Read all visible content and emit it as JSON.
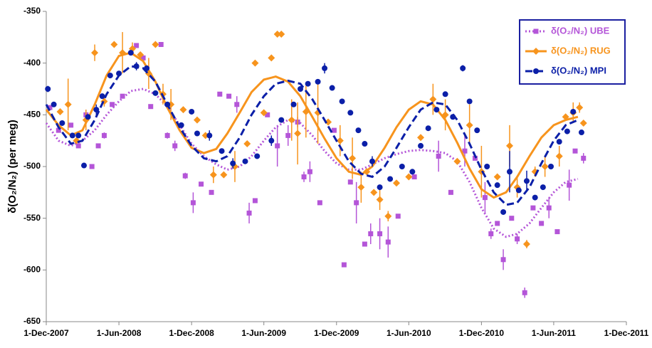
{
  "chart_data": {
    "type": "scatter",
    "y_label": "δ(O₂/N₂) (per meg)",
    "xlim": [
      "2007-12-01",
      "2011-12-01"
    ],
    "xticks": [
      {
        "value": "2007-12-01",
        "label": "1-Dec-2007"
      },
      {
        "value": "2008-06-01",
        "label": "1-Jun-2008"
      },
      {
        "value": "2008-12-01",
        "label": "1-Dec-2008"
      },
      {
        "value": "2009-06-01",
        "label": "1-Jun-2009"
      },
      {
        "value": "2009-12-01",
        "label": "1-Dec-2009"
      },
      {
        "value": "2010-06-01",
        "label": "1-Jun-2010"
      },
      {
        "value": "2010-12-01",
        "label": "1-Dec-2010"
      },
      {
        "value": "2011-06-01",
        "label": "1-Jun-2011"
      },
      {
        "value": "2011-12-01",
        "label": "1-Dec-2011"
      }
    ],
    "ylim": [
      -650,
      -350
    ],
    "yticks": [
      -650,
      -600,
      -550,
      -500,
      -450,
      -400,
      -350
    ],
    "legend": "upper right",
    "fit_x": [
      "2007-12-01",
      "2008-01-01",
      "2008-02-01",
      "2008-03-01",
      "2008-04-01",
      "2008-05-01",
      "2008-06-01",
      "2008-07-01",
      "2008-08-01",
      "2008-09-01",
      "2008-10-01",
      "2008-11-01",
      "2008-12-01",
      "2009-01-01",
      "2009-02-01",
      "2009-03-01",
      "2009-04-01",
      "2009-05-01",
      "2009-06-01",
      "2009-07-01",
      "2009-08-01",
      "2009-09-01",
      "2009-10-01",
      "2009-11-01",
      "2009-12-01",
      "2010-01-01",
      "2010-02-01",
      "2010-03-01",
      "2010-04-01",
      "2010-05-01",
      "2010-06-01",
      "2010-07-01",
      "2010-08-01",
      "2010-09-01",
      "2010-10-01",
      "2010-11-01",
      "2010-12-01",
      "2011-01-01",
      "2011-02-01",
      "2011-03-01",
      "2011-04-01",
      "2011-05-01",
      "2011-06-01",
      "2011-07-01",
      "2011-08-01"
    ],
    "series": [
      {
        "name": "δ(O₂/N₂) UBE",
        "color": "#b455d8",
        "marker": "square",
        "line_style": "dotted",
        "x": [
          "2007-12-10",
          "2008-01-01",
          "2008-02-01",
          "2008-02-20",
          "2008-03-10",
          "2008-03-25",
          "2008-04-10",
          "2008-04-25",
          "2008-05-15",
          "2008-06-10",
          "2008-07-15",
          "2008-08-01",
          "2008-08-20",
          "2008-09-15",
          "2008-10-01",
          "2008-10-20",
          "2008-11-15",
          "2008-12-05",
          "2008-12-25",
          "2009-01-20",
          "2009-02-10",
          "2009-03-05",
          "2009-03-25",
          "2009-04-25",
          "2009-05-10",
          "2009-06-10",
          "2009-07-05",
          "2009-08-01",
          "2009-08-25",
          "2009-09-10",
          "2009-09-25",
          "2009-10-20",
          "2009-11-25",
          "2009-12-20",
          "2010-01-05",
          "2010-01-20",
          "2010-02-10",
          "2010-02-25",
          "2010-03-20",
          "2010-04-10",
          "2010-05-05",
          "2010-06-15",
          "2010-08-15",
          "2010-09-15",
          "2010-10-20",
          "2010-11-15",
          "2010-12-10",
          "2010-12-25",
          "2011-01-10",
          "2011-01-25",
          "2011-02-15",
          "2011-03-01",
          "2011-03-20",
          "2011-04-10",
          "2011-05-01",
          "2011-05-20",
          "2011-06-10",
          "2011-07-10",
          "2011-07-25",
          "2011-08-15"
        ],
        "values": [
          -443,
          -465,
          -460,
          -480,
          -450,
          -500,
          -480,
          -470,
          -440,
          -432,
          -383,
          -395,
          -442,
          -382,
          -470,
          -480,
          -509,
          -535,
          -517,
          -525,
          -430,
          -432,
          -440,
          -545,
          -533,
          -450,
          -480,
          -470,
          -457,
          -510,
          -505,
          -535,
          -465,
          -595,
          -515,
          -535,
          -575,
          -565,
          -565,
          -573,
          -548,
          -510,
          -490,
          -525,
          -485,
          -492,
          -530,
          -565,
          -555,
          -590,
          -550,
          -570,
          -622,
          -540,
          -555,
          -540,
          -563,
          -518,
          -485,
          -492
        ],
        "errors": [
          null,
          null,
          null,
          null,
          5,
          null,
          null,
          3,
          null,
          null,
          null,
          null,
          null,
          null,
          3,
          5,
          3,
          10,
          null,
          null,
          null,
          null,
          8,
          10,
          null,
          null,
          20,
          10,
          5,
          5,
          10,
          null,
          null,
          null,
          null,
          20,
          null,
          10,
          15,
          15,
          null,
          null,
          15,
          null,
          15,
          null,
          15,
          5,
          null,
          10,
          null,
          5,
          5,
          null,
          null,
          10,
          null,
          15,
          null,
          5
        ],
        "fit_values": [
          -458,
          -475,
          -480,
          -475,
          -465,
          -450,
          -437,
          -427,
          -425,
          -430,
          -442,
          -460,
          -478,
          -490,
          -498,
          -503,
          -500,
          -490,
          -475,
          -462,
          -455,
          -458,
          -470,
          -485,
          -497,
          -503,
          -503,
          -498,
          -492,
          -488,
          -485,
          -484,
          -485,
          -487,
          -495,
          -515,
          -540,
          -560,
          -568,
          -565,
          -555,
          -540,
          -525,
          -515,
          -512
        ]
      },
      {
        "name": "δ(O₂/N₂) RUG",
        "color": "#f7941d",
        "marker": "diamond",
        "line_style": "solid",
        "x": [
          "2008-01-05",
          "2008-01-25",
          "2008-02-15",
          "2008-03-10",
          "2008-04-01",
          "2008-04-25",
          "2008-05-20",
          "2008-06-10",
          "2008-07-05",
          "2008-07-25",
          "2008-08-15",
          "2008-09-01",
          "2008-09-20",
          "2008-10-10",
          "2008-11-10",
          "2008-12-15",
          "2009-01-05",
          "2009-01-25",
          "2009-02-20",
          "2009-03-20",
          "2009-04-20",
          "2009-05-10",
          "2009-06-01",
          "2009-06-20",
          "2009-07-05",
          "2009-07-15",
          "2009-08-10",
          "2009-08-25",
          "2009-09-15",
          "2009-10-15",
          "2009-11-10",
          "2009-12-10",
          "2010-01-10",
          "2010-02-01",
          "2010-02-15",
          "2010-03-05",
          "2010-03-20",
          "2010-04-10",
          "2010-05-01",
          "2010-06-01",
          "2010-07-01",
          "2010-08-01",
          "2010-09-01",
          "2010-10-01",
          "2010-11-01",
          "2010-12-01",
          "2011-01-10",
          "2011-02-10",
          "2011-03-01",
          "2011-03-25",
          "2011-04-15",
          "2011-05-10",
          "2011-06-15",
          "2011-07-01",
          "2011-07-20",
          "2011-08-05",
          "2011-08-15"
        ],
        "values": [
          -447,
          -440,
          -475,
          -455,
          -390,
          -437,
          -382,
          -390,
          -386,
          -392,
          -410,
          -382,
          -430,
          -440,
          -445,
          -455,
          -470,
          -508,
          -508,
          -500,
          -478,
          -400,
          -448,
          -395,
          -372,
          -372,
          -455,
          -468,
          -447,
          -448,
          -457,
          -475,
          -492,
          -520,
          -505,
          -525,
          -532,
          -548,
          -516,
          -510,
          -472,
          -435,
          -450,
          -495,
          -460,
          -505,
          -510,
          -480,
          -520,
          -575,
          -505,
          -500,
          -490,
          -452,
          -448,
          -443,
          -458
        ],
        "errors": [
          3,
          25,
          null,
          10,
          8,
          5,
          null,
          20,
          6,
          null,
          15,
          null,
          10,
          15,
          null,
          null,
          null,
          8,
          null,
          15,
          null,
          null,
          null,
          null,
          null,
          null,
          20,
          30,
          25,
          30,
          null,
          15,
          20,
          15,
          null,
          null,
          10,
          5,
          null,
          null,
          null,
          15,
          15,
          null,
          20,
          25,
          null,
          20,
          10,
          4,
          5,
          10,
          10,
          null,
          10,
          5,
          null
        ],
        "fit_values": [
          -445,
          -460,
          -470,
          -465,
          -440,
          -412,
          -393,
          -390,
          -398,
          -418,
          -443,
          -465,
          -482,
          -487,
          -483,
          -468,
          -448,
          -428,
          -416,
          -413,
          -418,
          -432,
          -452,
          -473,
          -492,
          -505,
          -508,
          -500,
          -482,
          -462,
          -445,
          -437,
          -440,
          -455,
          -477,
          -502,
          -522,
          -530,
          -525,
          -510,
          -490,
          -472,
          -460,
          -455,
          -452
        ]
      },
      {
        "name": "δ(O₂/N₂) MPI",
        "color": "#0b1fa8",
        "marker": "circle",
        "line_style": "dashed",
        "x": [
          "2007-12-05",
          "2007-12-20",
          "2008-01-10",
          "2008-02-05",
          "2008-02-20",
          "2008-03-05",
          "2008-03-15",
          "2008-04-05",
          "2008-04-20",
          "2008-05-10",
          "2008-06-01",
          "2008-07-01",
          "2008-07-15",
          "2008-08-10",
          "2008-09-01",
          "2008-10-01",
          "2008-11-05",
          "2008-12-01",
          "2008-12-15",
          "2009-01-15",
          "2009-02-15",
          "2009-03-15",
          "2009-04-15",
          "2009-05-15",
          "2009-06-20",
          "2009-07-15",
          "2009-08-15",
          "2009-09-01",
          "2009-09-20",
          "2009-10-15",
          "2009-11-01",
          "2009-11-20",
          "2009-12-15",
          "2010-01-05",
          "2010-01-25",
          "2010-02-10",
          "2010-03-01",
          "2010-03-20",
          "2010-04-15",
          "2010-05-15",
          "2010-06-10",
          "2010-07-01",
          "2010-07-20",
          "2010-08-10",
          "2010-09-01",
          "2010-09-20",
          "2010-10-15",
          "2010-11-01",
          "2010-11-20",
          "2010-12-15",
          "2011-01-10",
          "2011-01-25",
          "2011-02-10",
          "2011-03-05",
          "2011-03-25",
          "2011-04-15",
          "2011-05-05",
          "2011-05-25",
          "2011-06-15",
          "2011-07-05",
          "2011-07-20",
          "2011-08-10"
        ],
        "values": [
          -425,
          -440,
          -458,
          -470,
          -470,
          -499,
          -452,
          -445,
          -432,
          -412,
          -410,
          -390,
          -403,
          -405,
          -429,
          -440,
          -460,
          -447,
          -468,
          -470,
          -485,
          -497,
          -495,
          -490,
          -475,
          -455,
          -440,
          -425,
          -420,
          -418,
          -405,
          -424,
          -437,
          -448,
          -465,
          -478,
          -495,
          -520,
          -512,
          -500,
          -505,
          -480,
          -463,
          -445,
          -430,
          -452,
          -405,
          -437,
          -465,
          -500,
          -518,
          -544,
          -505,
          -523,
          -514,
          -530,
          -520,
          -500,
          -476,
          -466,
          -447,
          -467
        ],
        "errors": [
          3,
          null,
          null,
          null,
          null,
          null,
          null,
          5,
          null,
          null,
          null,
          null,
          4,
          null,
          null,
          null,
          null,
          null,
          null,
          5,
          null,
          5,
          null,
          null,
          5,
          null,
          null,
          null,
          null,
          null,
          5,
          null,
          null,
          null,
          null,
          null,
          5,
          null,
          null,
          null,
          null,
          null,
          null,
          null,
          null,
          null,
          3,
          null,
          null,
          null,
          null,
          null,
          20,
          null,
          10,
          null,
          null,
          null,
          null,
          null,
          null,
          null
        ],
        "fit_values": [
          -440,
          -462,
          -478,
          -475,
          -455,
          -430,
          -412,
          -403,
          -405,
          -418,
          -440,
          -462,
          -480,
          -492,
          -495,
          -490,
          -472,
          -450,
          -432,
          -420,
          -417,
          -420,
          -435,
          -455,
          -475,
          -495,
          -507,
          -510,
          -500,
          -482,
          -462,
          -445,
          -438,
          -440,
          -455,
          -478,
          -503,
          -525,
          -537,
          -535,
          -520,
          -497,
          -475,
          -460,
          -455
        ]
      }
    ]
  }
}
